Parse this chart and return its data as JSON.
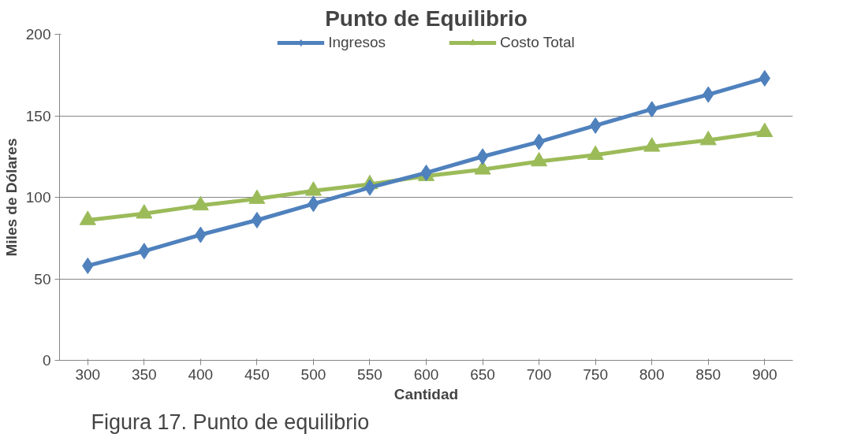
{
  "chart_data": {
    "type": "line",
    "title": "Punto de Equilibrio",
    "xlabel": "Cantidad",
    "ylabel": "Miles de Dólares",
    "categories": [
      "300",
      "350",
      "400",
      "450",
      "500",
      "550",
      "600",
      "650",
      "700",
      "750",
      "800",
      "850",
      "900"
    ],
    "series": [
      {
        "name": "Ingresos",
        "color": "#4f81bd",
        "marker": "diamond",
        "values": [
          58,
          67,
          77,
          86,
          96,
          106,
          115,
          125,
          134,
          144,
          154,
          163,
          173
        ]
      },
      {
        "name": "Costo Total",
        "color": "#9bbb59",
        "marker": "triangle",
        "values": [
          86,
          90,
          95,
          99,
          104,
          108,
          113,
          117,
          122,
          126,
          131,
          135,
          140
        ]
      }
    ],
    "ylim": [
      0,
      200
    ],
    "yticks": [
      0,
      50,
      100,
      150,
      200
    ],
    "grid": "y",
    "legend": "top",
    "annotations": [
      "Figura 17. Punto de equilibrio"
    ]
  }
}
